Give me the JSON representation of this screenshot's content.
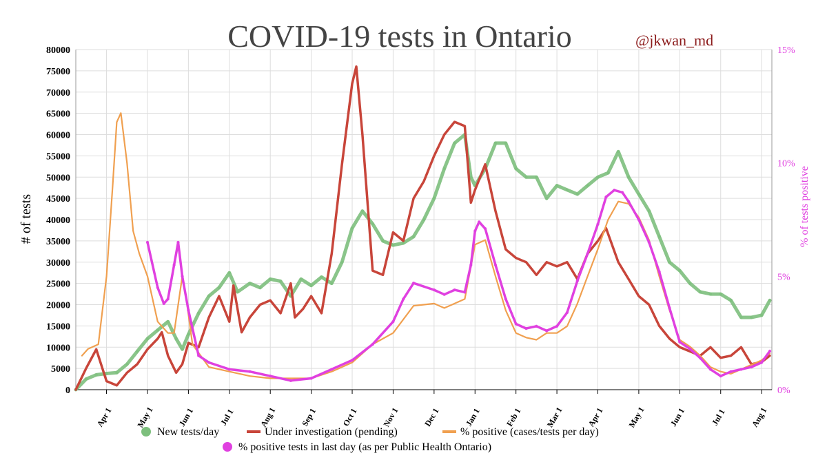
{
  "chart_data": {
    "type": "line",
    "title": "COVID-19 tests in Ontario",
    "handle": "@jkwan_md",
    "ylabel": "# of tests",
    "y2label": "% of tests positive",
    "ylim": [
      0,
      80000
    ],
    "y2lim": [
      0,
      15
    ],
    "yticks": [
      "0",
      "5000",
      "10000",
      "15000",
      "20000",
      "25000",
      "30000",
      "35000",
      "40000",
      "45000",
      "50000",
      "55000",
      "60000",
      "65000",
      "70000",
      "75000",
      "80000"
    ],
    "y2ticks": [
      "0%",
      "5%",
      "10%",
      "15%"
    ],
    "xticks": [
      "Apr 1",
      "May 1",
      "Jun 1",
      "Jul 1",
      "Aug 1",
      "Sep 1",
      "Oct 1",
      "Nov 1",
      "Dec 1",
      "Jan 1",
      "Feb 1",
      "Mar 1",
      "Apr 1",
      "May 1",
      "Jun 1",
      "Jul 1",
      "Aug 1"
    ],
    "x_unit": "month index (0 = Apr 1 2020)",
    "legend": [
      {
        "label": "New tests/day",
        "color": "#7dbf7d"
      },
      {
        "label": "Under investigation (pending)",
        "color": "#c8453a"
      },
      {
        "label": "% positive (cases/tests per day)",
        "color": "#f0a050"
      },
      {
        "label": "% positive tests in last day (as per Public Health Ontario)",
        "color": "#e040e0"
      }
    ],
    "series": [
      {
        "name": "New tests/day",
        "axis": "left",
        "points": [
          [
            -0.75,
            0
          ],
          [
            -0.5,
            2500
          ],
          [
            -0.25,
            3500
          ],
          [
            0,
            3800
          ],
          [
            0.25,
            4000
          ],
          [
            0.5,
            6000
          ],
          [
            0.75,
            9000
          ],
          [
            1,
            12000
          ],
          [
            1.25,
            14000
          ],
          [
            1.5,
            16000
          ],
          [
            1.7,
            12000
          ],
          [
            1.85,
            9500
          ],
          [
            2,
            13000
          ],
          [
            2.25,
            18000
          ],
          [
            2.5,
            22000
          ],
          [
            2.75,
            24000
          ],
          [
            3,
            27500
          ],
          [
            3.2,
            23000
          ],
          [
            3.5,
            25000
          ],
          [
            3.75,
            24000
          ],
          [
            4,
            26000
          ],
          [
            4.25,
            25500
          ],
          [
            4.5,
            22000
          ],
          [
            4.75,
            26000
          ],
          [
            5,
            24500
          ],
          [
            5.25,
            26500
          ],
          [
            5.5,
            25000
          ],
          [
            5.75,
            30000
          ],
          [
            6,
            38000
          ],
          [
            6.25,
            42000
          ],
          [
            6.5,
            39000
          ],
          [
            6.75,
            35000
          ],
          [
            7,
            34000
          ],
          [
            7.25,
            34500
          ],
          [
            7.5,
            36000
          ],
          [
            7.75,
            40000
          ],
          [
            8,
            45000
          ],
          [
            8.25,
            52000
          ],
          [
            8.5,
            58000
          ],
          [
            8.75,
            60000
          ],
          [
            8.9,
            50000
          ],
          [
            9,
            48000
          ],
          [
            9.25,
            52000
          ],
          [
            9.5,
            58000
          ],
          [
            9.75,
            58000
          ],
          [
            10,
            52000
          ],
          [
            10.25,
            50000
          ],
          [
            10.5,
            50000
          ],
          [
            10.75,
            45000
          ],
          [
            11,
            48000
          ],
          [
            11.25,
            47000
          ],
          [
            11.5,
            46000
          ],
          [
            11.75,
            48000
          ],
          [
            12,
            50000
          ],
          [
            12.25,
            51000
          ],
          [
            12.5,
            56000
          ],
          [
            12.75,
            50000
          ],
          [
            13,
            46000
          ],
          [
            13.25,
            42000
          ],
          [
            13.5,
            36000
          ],
          [
            13.75,
            30000
          ],
          [
            14,
            28000
          ],
          [
            14.25,
            25000
          ],
          [
            14.5,
            23000
          ],
          [
            14.75,
            22500
          ],
          [
            15,
            22500
          ],
          [
            15.25,
            21000
          ],
          [
            15.5,
            17000
          ],
          [
            15.75,
            17000
          ],
          [
            16,
            17500
          ],
          [
            16.2,
            21000
          ]
        ]
      },
      {
        "name": "Under investigation (pending)",
        "axis": "left",
        "points": [
          [
            -0.75,
            0
          ],
          [
            -0.5,
            5000
          ],
          [
            -0.25,
            9500
          ],
          [
            -0.1,
            5000
          ],
          [
            0,
            2000
          ],
          [
            0.25,
            1000
          ],
          [
            0.5,
            4000
          ],
          [
            0.75,
            6000
          ],
          [
            1,
            9500
          ],
          [
            1.25,
            12000
          ],
          [
            1.35,
            13500
          ],
          [
            1.5,
            8000
          ],
          [
            1.7,
            4000
          ],
          [
            1.85,
            6000
          ],
          [
            2,
            11000
          ],
          [
            2.25,
            10000
          ],
          [
            2.5,
            17000
          ],
          [
            2.75,
            22000
          ],
          [
            3,
            16000
          ],
          [
            3.1,
            24500
          ],
          [
            3.3,
            13500
          ],
          [
            3.5,
            17000
          ],
          [
            3.75,
            20000
          ],
          [
            4,
            21000
          ],
          [
            4.25,
            18000
          ],
          [
            4.5,
            25000
          ],
          [
            4.6,
            17000
          ],
          [
            4.8,
            19000
          ],
          [
            5,
            22000
          ],
          [
            5.25,
            18000
          ],
          [
            5.5,
            32000
          ],
          [
            5.75,
            53000
          ],
          [
            6,
            72000
          ],
          [
            6.1,
            76000
          ],
          [
            6.25,
            60000
          ],
          [
            6.5,
            28000
          ],
          [
            6.75,
            27000
          ],
          [
            7,
            37000
          ],
          [
            7.25,
            35000
          ],
          [
            7.5,
            45000
          ],
          [
            7.75,
            49000
          ],
          [
            8,
            55000
          ],
          [
            8.25,
            60000
          ],
          [
            8.5,
            63000
          ],
          [
            8.75,
            62000
          ],
          [
            8.9,
            44000
          ],
          [
            9,
            47000
          ],
          [
            9.25,
            53000
          ],
          [
            9.5,
            42000
          ],
          [
            9.75,
            33000
          ],
          [
            10,
            31000
          ],
          [
            10.25,
            30000
          ],
          [
            10.5,
            27000
          ],
          [
            10.75,
            30000
          ],
          [
            11,
            29000
          ],
          [
            11.25,
            30000
          ],
          [
            11.5,
            26000
          ],
          [
            11.75,
            32000
          ],
          [
            12,
            35000
          ],
          [
            12.2,
            38000
          ],
          [
            12.5,
            30000
          ],
          [
            12.75,
            26000
          ],
          [
            13,
            22000
          ],
          [
            13.25,
            20000
          ],
          [
            13.5,
            15000
          ],
          [
            13.75,
            12000
          ],
          [
            14,
            10000
          ],
          [
            14.25,
            9000
          ],
          [
            14.5,
            8000
          ],
          [
            14.75,
            10000
          ],
          [
            15,
            7500
          ],
          [
            15.25,
            8000
          ],
          [
            15.5,
            10000
          ],
          [
            15.75,
            6000
          ],
          [
            16,
            6500
          ],
          [
            16.2,
            8000
          ]
        ]
      },
      {
        "name": "% positive (cases/tests per day)",
        "axis": "right",
        "points": [
          [
            -0.6,
            1.5
          ],
          [
            -0.45,
            1.8
          ],
          [
            -0.2,
            2
          ],
          [
            0,
            5
          ],
          [
            0.15,
            9
          ],
          [
            0.25,
            11.8
          ],
          [
            0.35,
            12.2
          ],
          [
            0.5,
            10
          ],
          [
            0.65,
            7
          ],
          [
            0.8,
            6
          ],
          [
            1,
            5
          ],
          [
            1.25,
            3
          ],
          [
            1.5,
            2.5
          ],
          [
            1.65,
            2.5
          ],
          [
            1.85,
            5
          ],
          [
            1.95,
            4
          ],
          [
            2.1,
            2
          ],
          [
            2.5,
            1
          ],
          [
            3,
            0.8
          ],
          [
            3.5,
            0.6
          ],
          [
            4,
            0.5
          ],
          [
            4.5,
            0.5
          ],
          [
            5,
            0.5
          ],
          [
            5.5,
            0.8
          ],
          [
            6,
            1.2
          ],
          [
            6.5,
            2
          ],
          [
            7,
            2.5
          ],
          [
            7.5,
            3.7
          ],
          [
            8,
            3.8
          ],
          [
            8.25,
            3.6
          ],
          [
            8.5,
            3.8
          ],
          [
            8.75,
            4
          ],
          [
            9,
            6.4
          ],
          [
            9.25,
            6.6
          ],
          [
            9.5,
            5
          ],
          [
            9.75,
            3.5
          ],
          [
            10,
            2.5
          ],
          [
            10.25,
            2.3
          ],
          [
            10.5,
            2.2
          ],
          [
            10.75,
            2.5
          ],
          [
            11,
            2.5
          ],
          [
            11.25,
            2.8
          ],
          [
            11.5,
            3.8
          ],
          [
            11.75,
            5
          ],
          [
            12,
            6.2
          ],
          [
            12.25,
            7.5
          ],
          [
            12.5,
            8.3
          ],
          [
            12.75,
            8.2
          ],
          [
            13,
            7.6
          ],
          [
            13.25,
            6.6
          ],
          [
            13.5,
            5
          ],
          [
            13.75,
            3.5
          ],
          [
            14,
            2.2
          ],
          [
            14.25,
            1.9
          ],
          [
            14.5,
            1.5
          ],
          [
            14.75,
            1
          ],
          [
            15,
            0.8
          ],
          [
            15.25,
            0.7
          ],
          [
            15.5,
            0.9
          ],
          [
            15.75,
            1.1
          ],
          [
            16,
            1.3
          ],
          [
            16.2,
            1.6
          ]
        ]
      },
      {
        "name": "% positive tests in last day (as per Public Health Ontario)",
        "axis": "right",
        "points": [
          [
            1,
            6.5
          ],
          [
            1.25,
            4.5
          ],
          [
            1.4,
            3.8
          ],
          [
            1.5,
            4
          ],
          [
            1.65,
            5.5
          ],
          [
            1.75,
            6.5
          ],
          [
            1.85,
            5
          ],
          [
            2,
            3.5
          ],
          [
            2.25,
            1.5
          ],
          [
            2.5,
            1.2
          ],
          [
            3,
            0.9
          ],
          [
            3.5,
            0.8
          ],
          [
            4,
            0.6
          ],
          [
            4.5,
            0.4
          ],
          [
            5,
            0.5
          ],
          [
            5.5,
            0.9
          ],
          [
            6,
            1.3
          ],
          [
            6.5,
            2
          ],
          [
            7,
            3
          ],
          [
            7.25,
            4
          ],
          [
            7.5,
            4.7
          ],
          [
            8,
            4.4
          ],
          [
            8.25,
            4.2
          ],
          [
            8.5,
            4.4
          ],
          [
            8.75,
            4.3
          ],
          [
            8.9,
            5.5
          ],
          [
            9,
            7
          ],
          [
            9.1,
            7.4
          ],
          [
            9.25,
            7.1
          ],
          [
            9.5,
            5.5
          ],
          [
            9.75,
            4
          ],
          [
            10,
            2.9
          ],
          [
            10.25,
            2.7
          ],
          [
            10.5,
            2.8
          ],
          [
            10.75,
            2.6
          ],
          [
            11,
            2.8
          ],
          [
            11.25,
            3.4
          ],
          [
            11.5,
            4.8
          ],
          [
            11.75,
            6
          ],
          [
            12,
            7.3
          ],
          [
            12.2,
            8.5
          ],
          [
            12.4,
            8.8
          ],
          [
            12.6,
            8.7
          ],
          [
            12.75,
            8.3
          ],
          [
            13,
            7.5
          ],
          [
            13.25,
            6.5
          ],
          [
            13.5,
            5.2
          ],
          [
            13.75,
            3.6
          ],
          [
            14,
            2.1
          ],
          [
            14.25,
            1.8
          ],
          [
            14.5,
            1.4
          ],
          [
            14.75,
            0.9
          ],
          [
            15,
            0.6
          ],
          [
            15.25,
            0.8
          ],
          [
            15.5,
            0.9
          ],
          [
            15.75,
            1
          ],
          [
            16,
            1.2
          ],
          [
            16.2,
            1.7
          ]
        ]
      }
    ]
  }
}
